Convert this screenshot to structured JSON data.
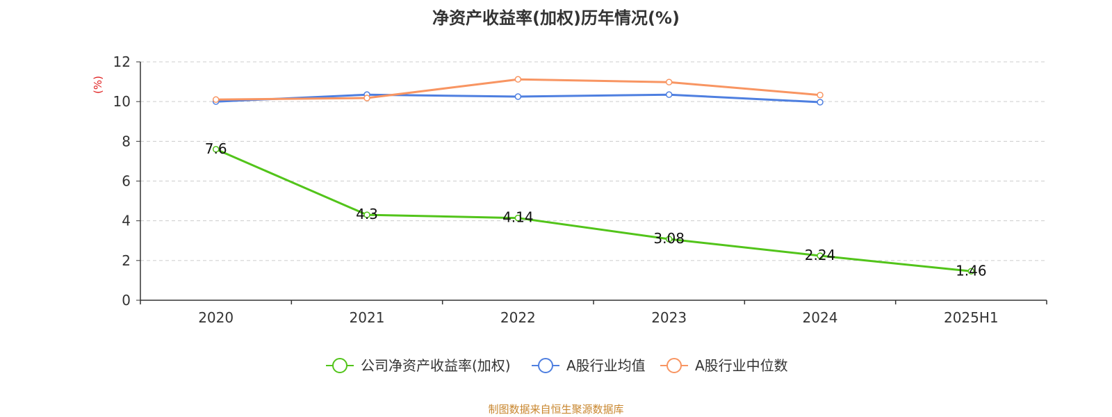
{
  "chart_data": {
    "type": "line",
    "title": "净资产收益率(加权)历年情况(%)",
    "ylabel": "(%)",
    "xlabel": "",
    "ylim": [
      0,
      12
    ],
    "yticks": [
      0,
      2,
      4,
      6,
      8,
      10,
      12
    ],
    "grid": true,
    "legend_position": "bottom",
    "categories": [
      "2020",
      "2021",
      "2022",
      "2023",
      "2024",
      "2025H1"
    ],
    "series": [
      {
        "name": "公司净资产收益率(加权)",
        "color": "#52c41a",
        "values": [
          7.6,
          4.3,
          4.14,
          3.08,
          2.24,
          1.46
        ],
        "labels": [
          "7.6",
          "4.3",
          "4.14",
          "3.08",
          "2.24",
          "1.46"
        ]
      },
      {
        "name": "A股行业均值",
        "color": "#4e7fe0",
        "values": [
          10.0,
          10.35,
          10.25,
          10.35,
          9.97,
          null
        ]
      },
      {
        "name": "A股行业中位数",
        "color": "#f89562",
        "values": [
          10.1,
          10.18,
          11.12,
          10.98,
          10.33,
          null
        ]
      }
    ]
  },
  "footer": "制图数据来自恒生聚源数据库"
}
